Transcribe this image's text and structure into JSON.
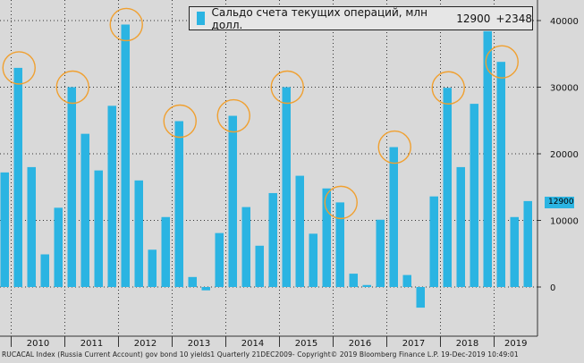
{
  "legend": {
    "series_name": "Сальдо счета текущих операций, млн долл.",
    "last_value": "12900",
    "change": "+2348"
  },
  "last_value_tag": "12900",
  "footer": "RUCACAL Index (Russia Current Account) gov bond 10 yields1  Quarterly 21DEC2009-   Copyright© 2019 Bloomberg Finance L.P.   19-Dec-2019 10:49:01",
  "colors": {
    "bar": "#2bb4e2",
    "highlight_circle": "#f0a030",
    "background": "#d9d9d9"
  },
  "chart_data": {
    "type": "bar",
    "title": "",
    "xlabel": "",
    "ylabel": "",
    "ylim": [
      -7000,
      44000
    ],
    "yticks": [
      0,
      10000,
      20000,
      30000,
      40000
    ],
    "ytick_labels": [
      "0",
      "10000",
      "20000",
      "30000",
      "40000"
    ],
    "year_labels": [
      "2010",
      "2011",
      "2012",
      "2013",
      "2014",
      "2015",
      "2016",
      "2017",
      "2018",
      "2019"
    ],
    "categories": [
      "2009Q4",
      "2010Q1",
      "2010Q2",
      "2010Q3",
      "2010Q4",
      "2011Q1",
      "2011Q2",
      "2011Q3",
      "2011Q4",
      "2012Q1",
      "2012Q2",
      "2012Q3",
      "2012Q4",
      "2013Q1",
      "2013Q2",
      "2013Q3",
      "2013Q4",
      "2014Q1",
      "2014Q2",
      "2014Q3",
      "2014Q4",
      "2015Q1",
      "2015Q2",
      "2015Q3",
      "2015Q4",
      "2016Q1",
      "2016Q2",
      "2016Q3",
      "2016Q4",
      "2017Q1",
      "2017Q2",
      "2017Q3",
      "2017Q4",
      "2018Q1",
      "2018Q2",
      "2018Q3",
      "2018Q4",
      "2019Q1",
      "2019Q2",
      "2019Q3"
    ],
    "values": [
      17200,
      32900,
      18000,
      4900,
      11900,
      30000,
      23000,
      17500,
      27200,
      39400,
      16000,
      5600,
      10500,
      24900,
      1500,
      -500,
      8100,
      25700,
      12000,
      6200,
      14100,
      30000,
      16700,
      8000,
      14800,
      12700,
      2000,
      300,
      10100,
      21000,
      1800,
      -3100,
      13600,
      29900,
      18000,
      27500,
      38400,
      33800,
      10500,
      12900
    ],
    "highlighted": [
      "2010Q1",
      "2011Q1",
      "2012Q1",
      "2013Q1",
      "2014Q1",
      "2015Q1",
      "2016Q1",
      "2017Q1",
      "2018Q1",
      "2019Q1"
    ],
    "grid": true,
    "legend_position": "top-right"
  }
}
